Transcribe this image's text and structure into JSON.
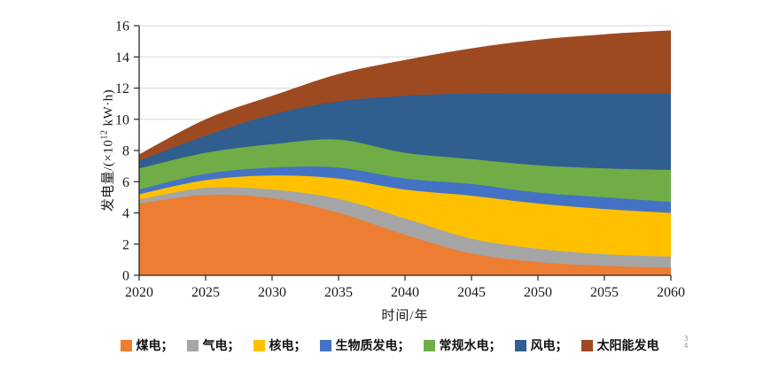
{
  "figure_bg": "#ffffff",
  "axis": {
    "y_title_prefix": "发电量/(×10",
    "y_title_sup": "12",
    "y_title_suffix": " kW·h)",
    "x_title": "时间/年",
    "y_ticks": [
      0,
      2,
      4,
      6,
      8,
      10,
      12,
      14,
      16
    ],
    "x_ticks": [
      2020,
      2025,
      2030,
      2035,
      2040,
      2045,
      2050,
      2055,
      2060
    ],
    "axis_color": "#262626",
    "grid_color": "#d8d8d8",
    "tick_label_color": "#1a1a1a"
  },
  "legend_separator": "；",
  "artifact": {
    "line1": "3",
    "line2": "4"
  },
  "chart_data": {
    "type": "area",
    "stacked": true,
    "title": "",
    "xlabel": "时间/年",
    "ylabel": "发电量/(×10¹² kW·h)",
    "xlim": [
      2020,
      2060
    ],
    "ylim": [
      0,
      16
    ],
    "grid": true,
    "legend_position": "bottom",
    "x": [
      2020,
      2025,
      2030,
      2035,
      2040,
      2045,
      2050,
      2055,
      2060
    ],
    "series": [
      {
        "name": "煤电",
        "color": "#ED7D31",
        "values": [
          4.6,
          5.15,
          4.95,
          4.0,
          2.6,
          1.4,
          0.85,
          0.6,
          0.5
        ]
      },
      {
        "name": "气电",
        "color": "#A5A5A5",
        "values": [
          0.25,
          0.45,
          0.55,
          0.9,
          1.05,
          0.95,
          0.85,
          0.75,
          0.7
        ]
      },
      {
        "name": "核电",
        "color": "#FFC000",
        "values": [
          0.35,
          0.5,
          0.9,
          1.3,
          1.85,
          2.75,
          2.9,
          2.9,
          2.8
        ]
      },
      {
        "name": "生物质发电",
        "color": "#4472C4",
        "values": [
          0.3,
          0.4,
          0.5,
          0.7,
          0.7,
          0.75,
          0.7,
          0.75,
          0.7
        ]
      },
      {
        "name": "常规水电",
        "color": "#70AD47",
        "values": [
          1.35,
          1.35,
          1.5,
          1.8,
          1.65,
          1.6,
          1.75,
          1.85,
          2.05
        ]
      },
      {
        "name": "风电",
        "color": "#2F5E8F",
        "values": [
          0.5,
          1.1,
          1.9,
          2.45,
          3.65,
          4.2,
          4.6,
          4.8,
          4.9
        ]
      },
      {
        "name": "太阳能发电",
        "color": "#9E4A21",
        "values": [
          0.4,
          1.05,
          1.2,
          1.75,
          2.3,
          2.9,
          3.45,
          3.8,
          4.05
        ]
      }
    ],
    "stack_totals": [
      7.75,
      10.0,
      11.5,
      12.9,
      13.8,
      14.55,
      15.1,
      15.45,
      15.7
    ]
  }
}
